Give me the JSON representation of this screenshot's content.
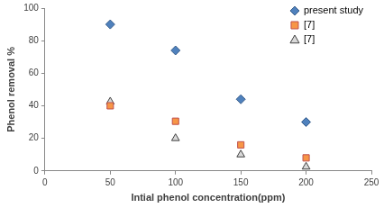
{
  "chart_data": {
    "type": "scatter",
    "x_label": "Intial phenol concentration(ppm)",
    "y_label": "Phenol removal %",
    "x": [
      50,
      100,
      150,
      200
    ],
    "series": [
      {
        "name": "present study",
        "color": "#4f81bd",
        "marker": "diamond",
        "values": [
          90,
          74,
          44,
          30
        ]
      },
      {
        "name": "[7]",
        "color": "#f79646",
        "marker": "square",
        "values": [
          40,
          30.5,
          16,
          8
        ]
      },
      {
        "name": "[7]",
        "color": "#d9d9d9",
        "marker": "triangle",
        "values": [
          42.5,
          20,
          10,
          2.5
        ]
      }
    ],
    "xlim": [
      0,
      250
    ],
    "xticks": [
      0,
      50,
      100,
      150,
      200,
      250
    ],
    "ylim": [
      0,
      100
    ],
    "yticks": [
      0,
      20,
      40,
      60,
      80,
      100
    ],
    "grid": false,
    "legend": "upper right"
  }
}
